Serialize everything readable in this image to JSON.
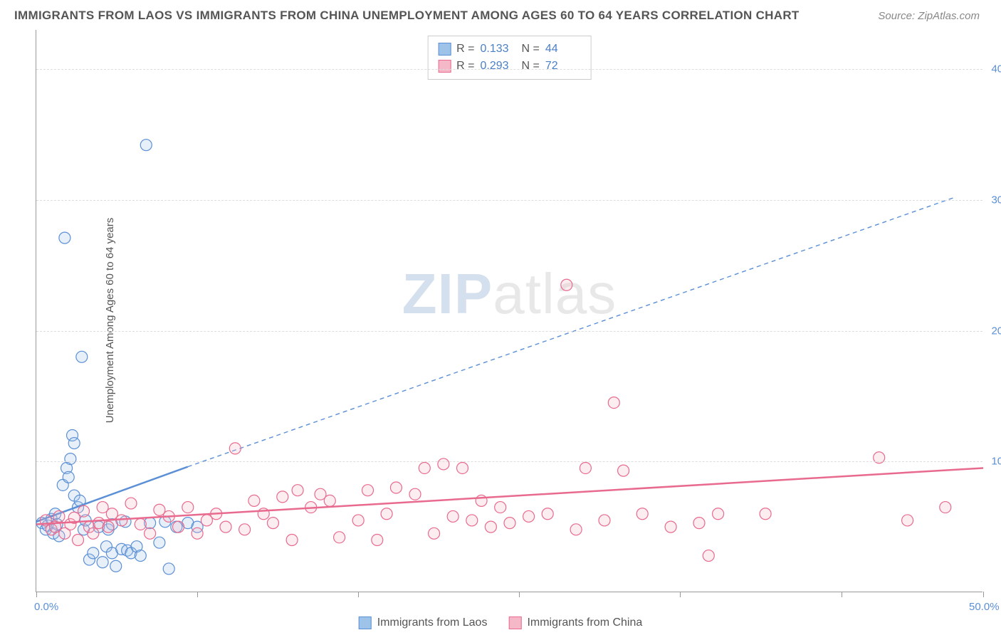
{
  "title": "IMMIGRANTS FROM LAOS VS IMMIGRANTS FROM CHINA UNEMPLOYMENT AMONG AGES 60 TO 64 YEARS CORRELATION CHART",
  "source_prefix": "Source: ",
  "source": "ZipAtlas.com",
  "ylabel": "Unemployment Among Ages 60 to 64 years",
  "watermark_bold": "ZIP",
  "watermark_light": "atlas",
  "chart": {
    "type": "scatter",
    "xlim": [
      0,
      50
    ],
    "ylim": [
      0,
      43
    ],
    "xtick_positions": [
      0,
      8.5,
      17,
      25.5,
      34,
      42.5,
      50
    ],
    "xtick_labels": {
      "0": "0.0%",
      "50": "50.0%"
    },
    "ytick_positions": [
      10,
      20,
      30,
      40
    ],
    "ytick_labels": {
      "10": "10.0%",
      "20": "20.0%",
      "30": "30.0%",
      "40": "40.0%"
    },
    "grid_color": "#dddddd",
    "axis_color": "#999999",
    "background_color": "#ffffff",
    "marker_radius": 8,
    "marker_stroke_width": 1.2,
    "fill_opacity": 0.25,
    "series": [
      {
        "name": "Immigrants from Laos",
        "fill_color": "#9ec3e8",
        "stroke_color": "#5b8fd6",
        "R_label": "R =",
        "R": "0.133",
        "N_label": "N =",
        "N": "44",
        "regression": {
          "solid": {
            "x1": 0,
            "y1": 5.4,
            "x2": 8,
            "y2": 9.6,
            "width": 2.5
          },
          "dashed": {
            "x1": 8,
            "y1": 9.6,
            "x2": 48.5,
            "y2": 30.2,
            "width": 1.4,
            "dash": "6 5"
          }
        },
        "points": [
          [
            0.3,
            5.3
          ],
          [
            0.5,
            4.8
          ],
          [
            0.6,
            5.1
          ],
          [
            0.8,
            5.6
          ],
          [
            0.9,
            4.5
          ],
          [
            1.0,
            6.0
          ],
          [
            1.1,
            5.2
          ],
          [
            1.2,
            4.3
          ],
          [
            1.4,
            8.2
          ],
          [
            1.5,
            27.1
          ],
          [
            1.6,
            9.5
          ],
          [
            1.7,
            8.8
          ],
          [
            1.8,
            10.2
          ],
          [
            1.9,
            12.0
          ],
          [
            2.0,
            11.4
          ],
          [
            2.0,
            7.4
          ],
          [
            2.2,
            6.5
          ],
          [
            2.3,
            7.0
          ],
          [
            2.4,
            18.0
          ],
          [
            2.5,
            4.8
          ],
          [
            2.6,
            5.5
          ],
          [
            2.8,
            2.5
          ],
          [
            3.0,
            3.0
          ],
          [
            3.3,
            5.0
          ],
          [
            3.5,
            2.3
          ],
          [
            3.7,
            3.5
          ],
          [
            3.8,
            4.8
          ],
          [
            4.0,
            5.2
          ],
          [
            4.0,
            3.0
          ],
          [
            4.2,
            2.0
          ],
          [
            4.5,
            3.3
          ],
          [
            4.7,
            5.4
          ],
          [
            4.8,
            3.2
          ],
          [
            5.0,
            3.0
          ],
          [
            5.3,
            3.5
          ],
          [
            5.5,
            2.8
          ],
          [
            5.8,
            34.2
          ],
          [
            6.0,
            5.3
          ],
          [
            6.5,
            3.8
          ],
          [
            6.8,
            5.4
          ],
          [
            7.0,
            1.8
          ],
          [
            7.4,
            5.0
          ],
          [
            8.0,
            5.3
          ],
          [
            8.5,
            5.0
          ]
        ]
      },
      {
        "name": "Immigrants from China",
        "fill_color": "#f5b8c8",
        "stroke_color": "#e86a8e",
        "R_label": "R =",
        "R": "0.293",
        "N_label": "N =",
        "N": "72",
        "regression": {
          "solid": {
            "x1": 0,
            "y1": 5.2,
            "x2": 50,
            "y2": 9.5,
            "width": 2.5
          }
        },
        "points": [
          [
            0.5,
            5.5
          ],
          [
            0.8,
            4.8
          ],
          [
            1.0,
            5.0
          ],
          [
            1.2,
            5.8
          ],
          [
            1.5,
            4.5
          ],
          [
            1.8,
            5.2
          ],
          [
            2.0,
            5.7
          ],
          [
            2.2,
            4.0
          ],
          [
            2.5,
            6.2
          ],
          [
            2.8,
            5.0
          ],
          [
            3.0,
            4.5
          ],
          [
            3.3,
            5.3
          ],
          [
            3.5,
            6.5
          ],
          [
            3.8,
            5.0
          ],
          [
            4.0,
            6.0
          ],
          [
            4.5,
            5.5
          ],
          [
            5.0,
            6.8
          ],
          [
            5.5,
            5.2
          ],
          [
            6.0,
            4.5
          ],
          [
            6.5,
            6.3
          ],
          [
            7.0,
            5.8
          ],
          [
            7.5,
            5.0
          ],
          [
            8.0,
            6.5
          ],
          [
            8.5,
            4.5
          ],
          [
            9.0,
            5.5
          ],
          [
            9.5,
            6.0
          ],
          [
            10.0,
            5.0
          ],
          [
            10.5,
            11.0
          ],
          [
            11.0,
            4.8
          ],
          [
            11.5,
            7.0
          ],
          [
            12.0,
            6.0
          ],
          [
            12.5,
            5.3
          ],
          [
            13.0,
            7.3
          ],
          [
            13.5,
            4.0
          ],
          [
            13.8,
            7.8
          ],
          [
            14.5,
            6.5
          ],
          [
            15.0,
            7.5
          ],
          [
            15.5,
            7.0
          ],
          [
            16.0,
            4.2
          ],
          [
            17.0,
            5.5
          ],
          [
            17.5,
            7.8
          ],
          [
            18.0,
            4.0
          ],
          [
            18.5,
            6.0
          ],
          [
            19.0,
            8.0
          ],
          [
            20.0,
            7.5
          ],
          [
            20.5,
            9.5
          ],
          [
            21.0,
            4.5
          ],
          [
            21.5,
            9.8
          ],
          [
            22.0,
            5.8
          ],
          [
            22.5,
            9.5
          ],
          [
            23.0,
            5.5
          ],
          [
            23.5,
            7.0
          ],
          [
            24.0,
            5.0
          ],
          [
            24.5,
            6.5
          ],
          [
            25.0,
            5.3
          ],
          [
            26.0,
            5.8
          ],
          [
            27.0,
            6.0
          ],
          [
            28.0,
            23.5
          ],
          [
            28.5,
            4.8
          ],
          [
            29.0,
            9.5
          ],
          [
            30.0,
            5.5
          ],
          [
            30.5,
            14.5
          ],
          [
            31.0,
            9.3
          ],
          [
            32.0,
            6.0
          ],
          [
            33.5,
            5.0
          ],
          [
            35.0,
            5.3
          ],
          [
            35.5,
            2.8
          ],
          [
            36.0,
            6.0
          ],
          [
            38.5,
            6.0
          ],
          [
            44.5,
            10.3
          ],
          [
            46.0,
            5.5
          ],
          [
            48.0,
            6.5
          ]
        ]
      }
    ]
  },
  "bottom_legend": [
    {
      "label": "Immigrants from Laos",
      "fill": "#9ec3e8",
      "stroke": "#5b8fd6"
    },
    {
      "label": "Immigrants from China",
      "fill": "#f5b8c8",
      "stroke": "#e86a8e"
    }
  ]
}
